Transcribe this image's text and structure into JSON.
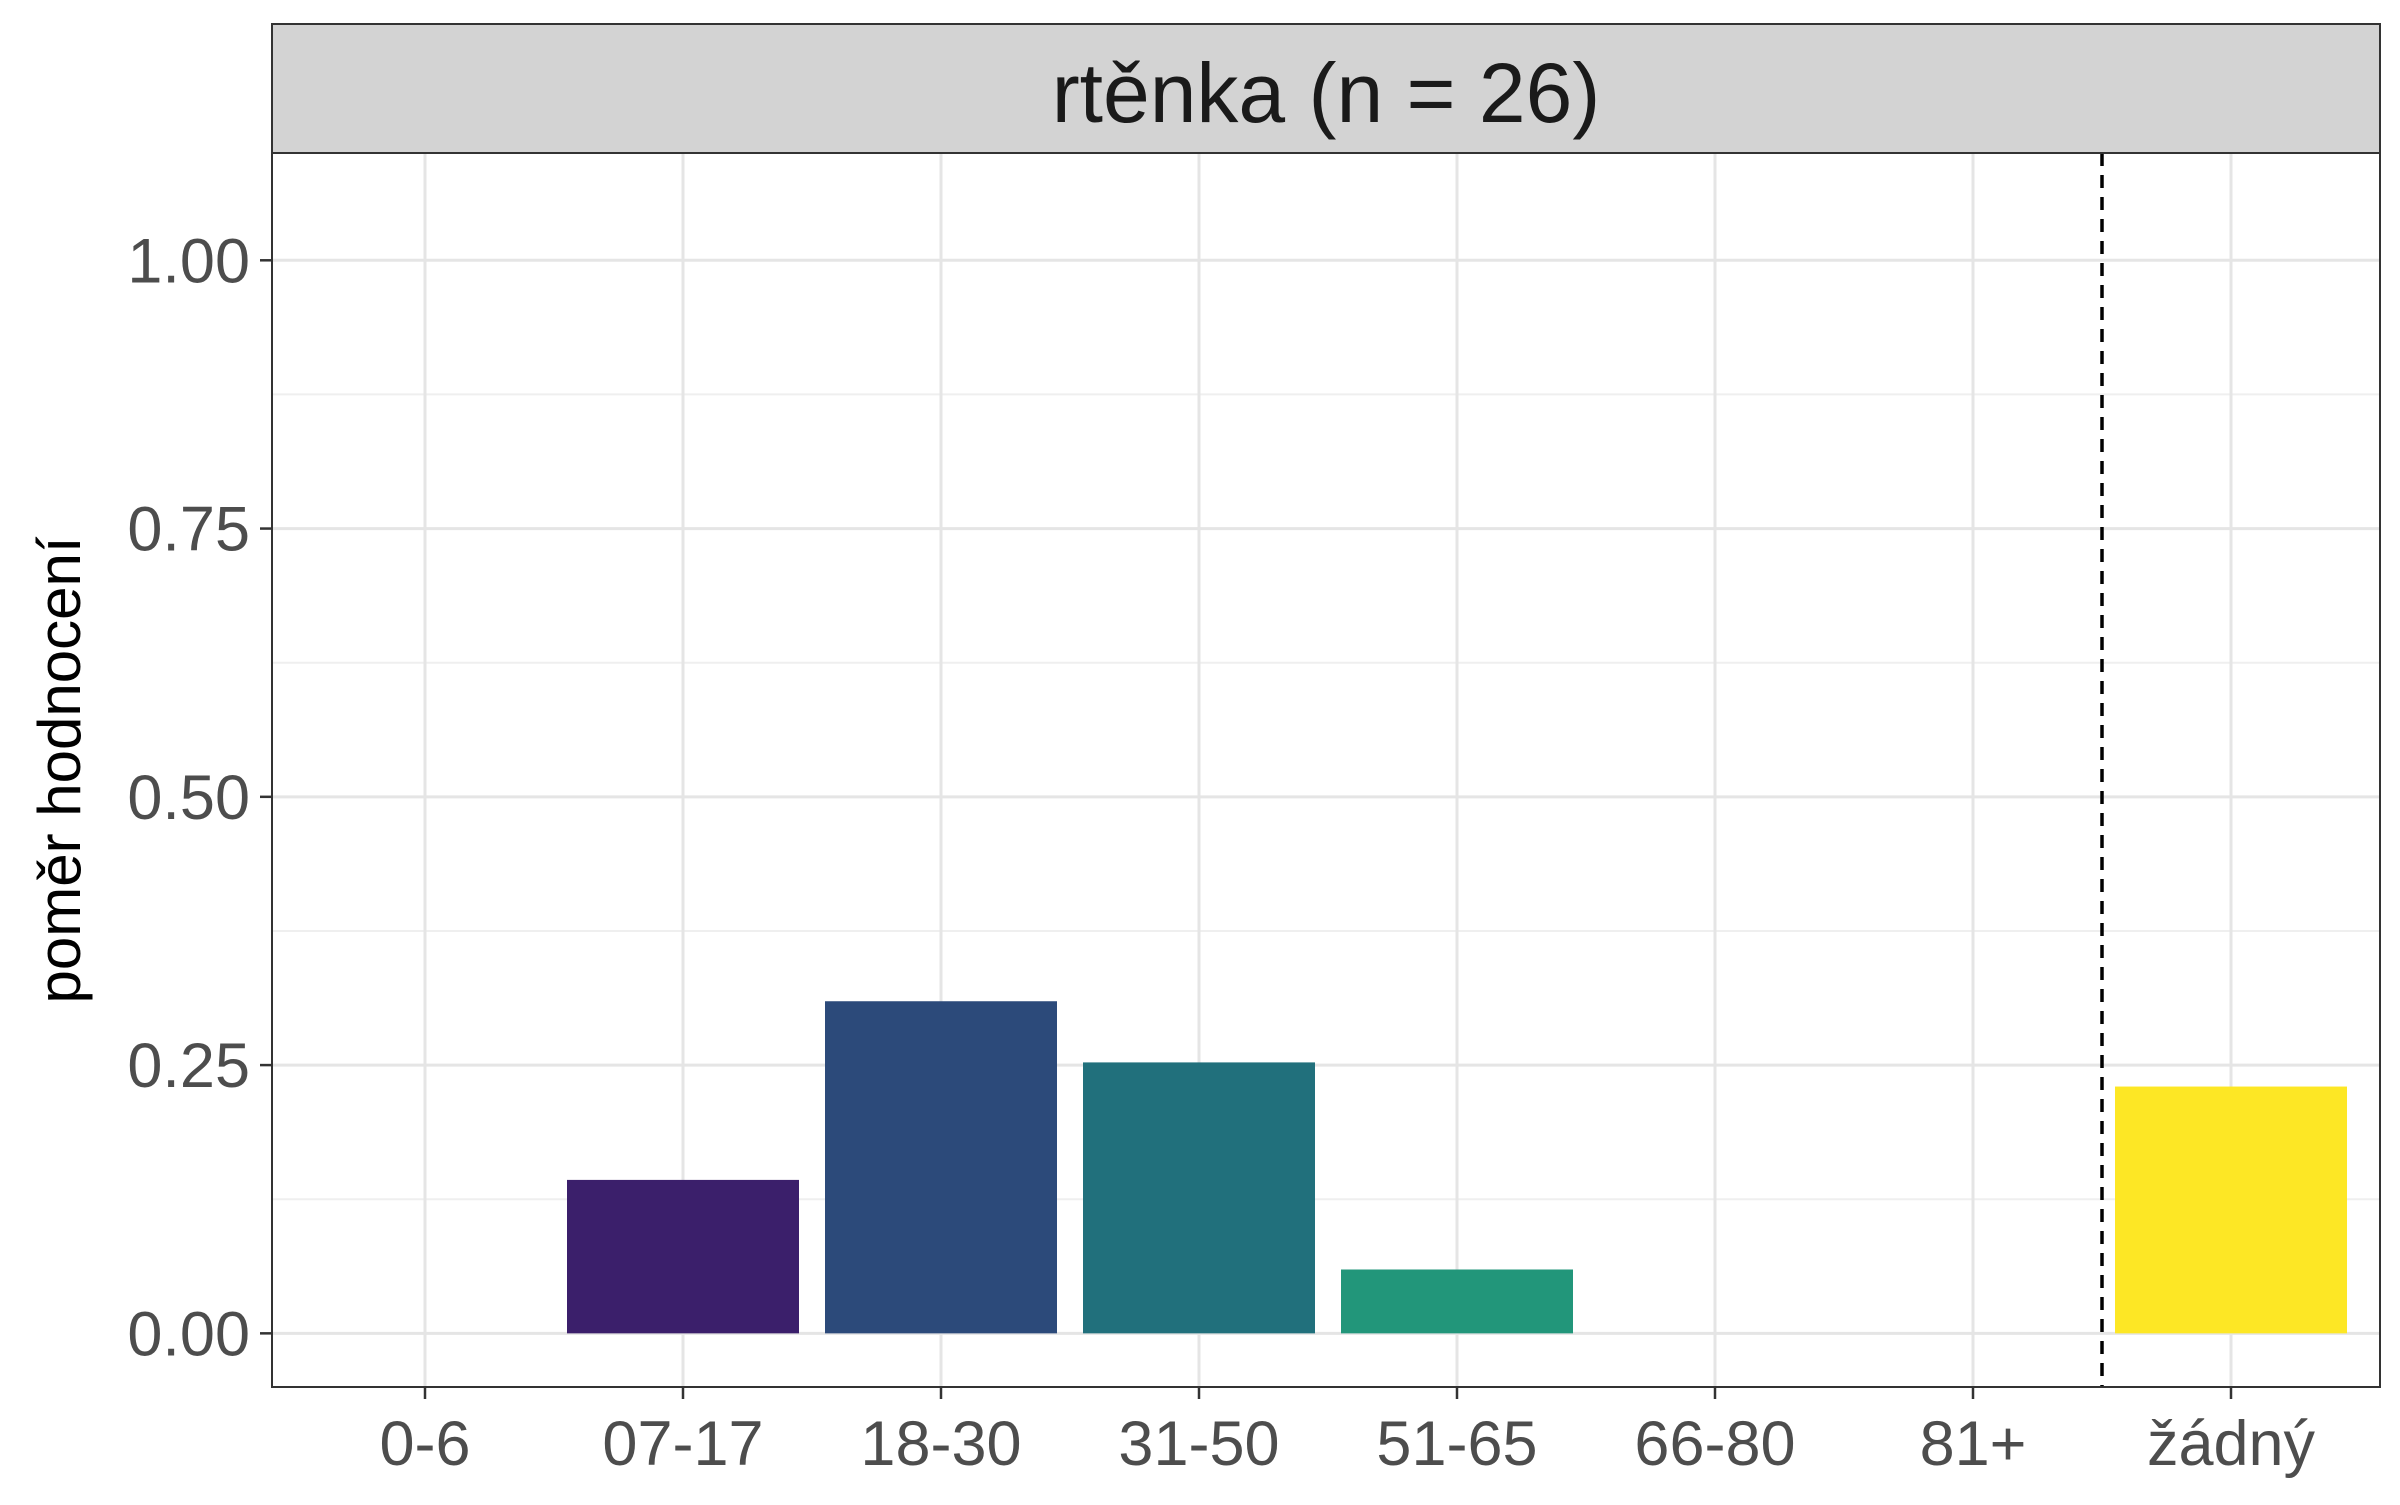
{
  "chart_data": {
    "type": "bar",
    "facet_title": "rtěnka (n = 26)",
    "categories": [
      "0-6",
      "07-17",
      "18-30",
      "31-50",
      "51-65",
      "66-80",
      "81+",
      "žádný"
    ],
    "values": [
      0,
      0.143,
      0.3095,
      0.2525,
      0.0595,
      0,
      0,
      0.23
    ],
    "colors": [
      "#440154",
      "#3B1F6B",
      "#2C4A7A",
      "#21707C",
      "#22967A",
      "#5DC863",
      "#B5DE2B",
      "#FDE725"
    ],
    "ylabel": "poměr hodnocení",
    "xlabel": "",
    "ylim": [
      -0.05,
      1.1
    ],
    "yticks": [
      0,
      0.25,
      0.5,
      0.75,
      1.0
    ],
    "ytick_labels": [
      "0.00",
      "0.25",
      "0.50",
      "0.75",
      "1.00"
    ],
    "grid": true,
    "reference_line": {
      "style": "dashed",
      "between": [
        "81+",
        "žádný"
      ]
    }
  }
}
